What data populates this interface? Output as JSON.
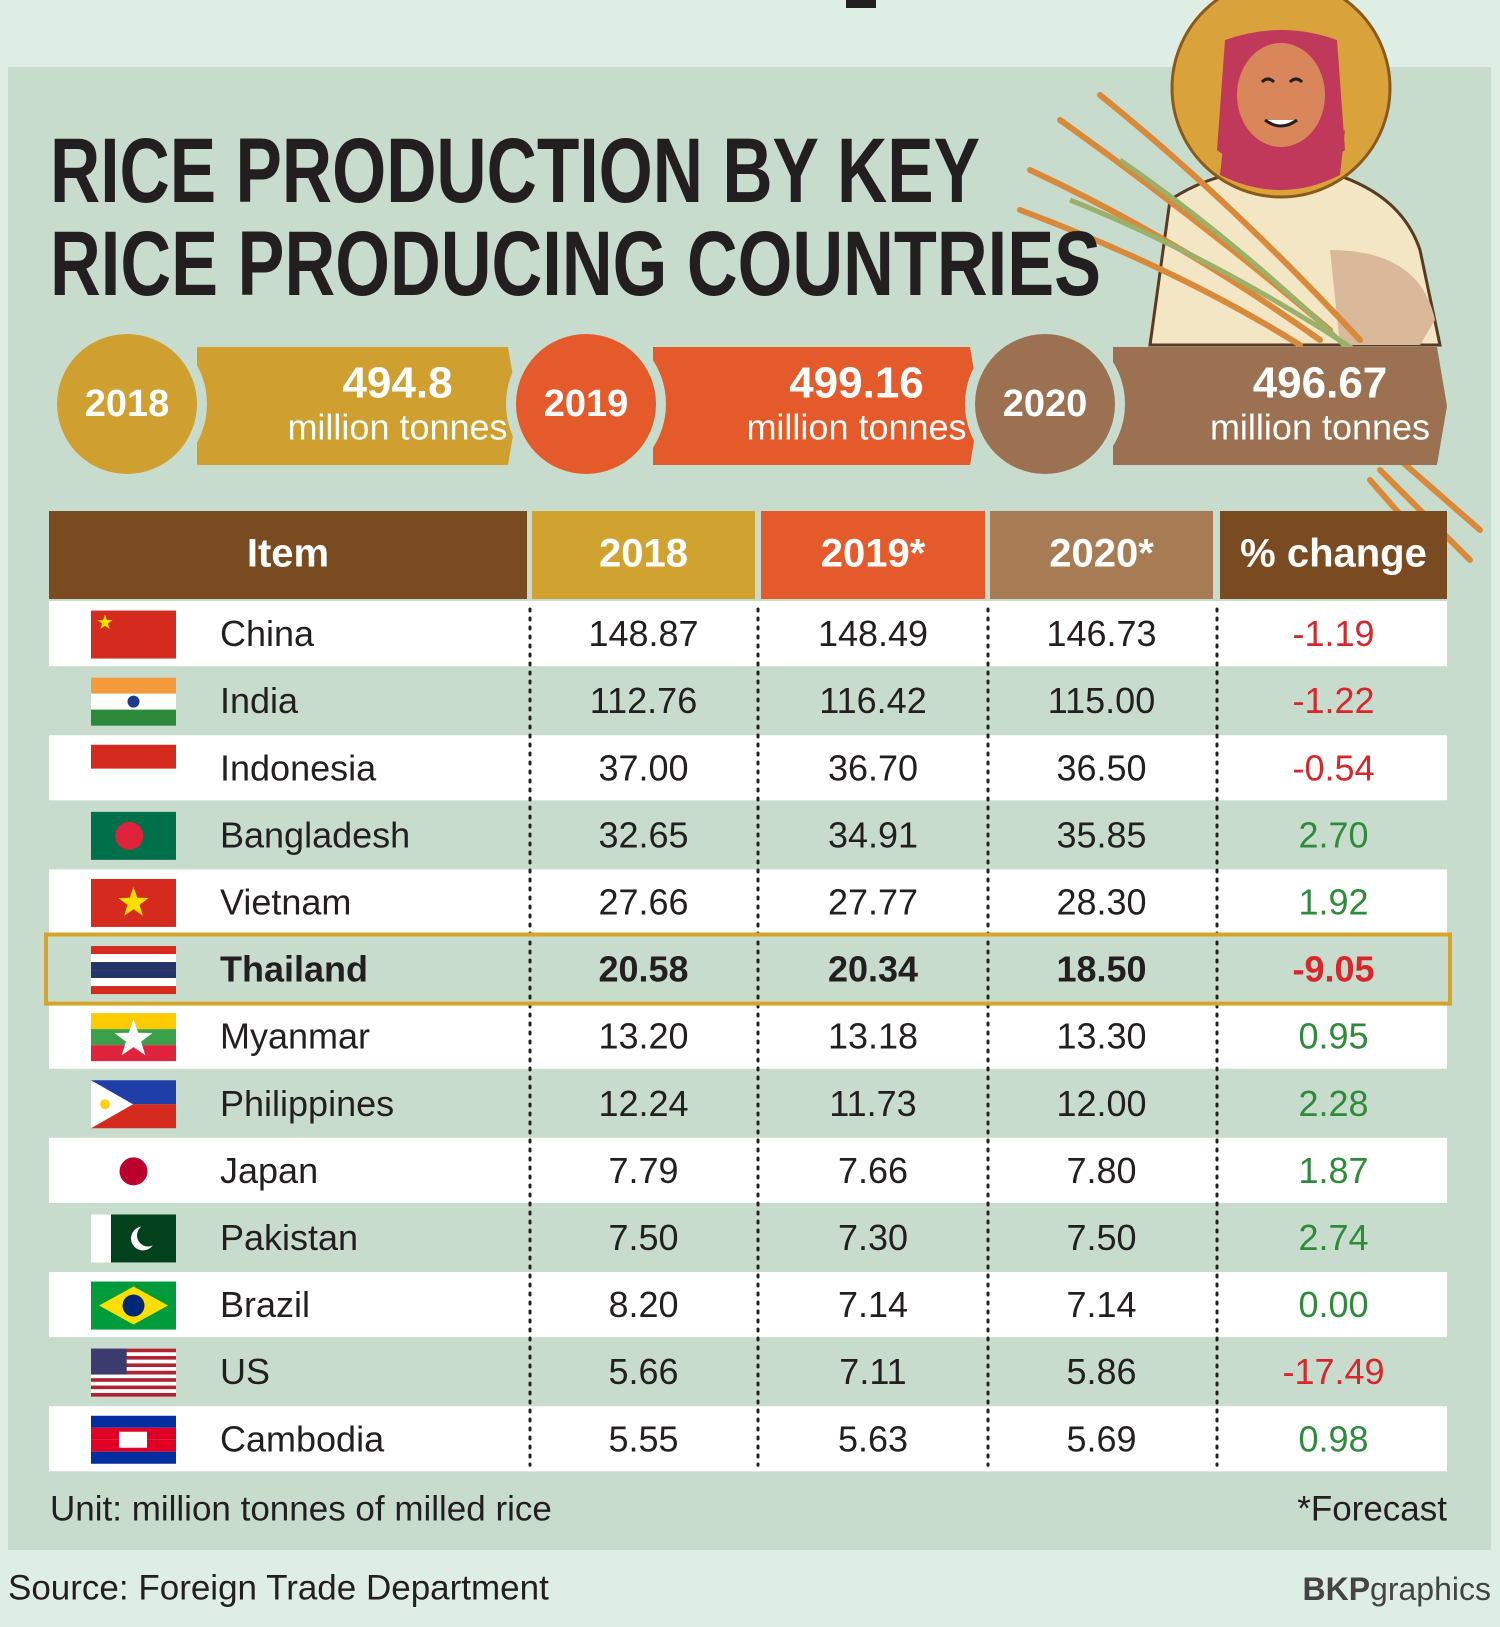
{
  "header": {
    "title_lines": [
      "RICE PRODUCTION BY KEY",
      "RICE PRODUCING COUNTRIES"
    ]
  },
  "totals": [
    {
      "year": "2018",
      "value": "494.8",
      "unit": "million tonnes"
    },
    {
      "year": "2019",
      "value": "499.16",
      "unit": "million tonnes"
    },
    {
      "year": "2020",
      "value": "496.67",
      "unit": "million tonnes"
    }
  ],
  "table": {
    "columns": [
      "Item",
      "2018",
      "2019*",
      "2020*",
      "% change"
    ],
    "rows": [
      [
        "China",
        "148.87",
        "148.49",
        "146.73",
        "-1.19"
      ],
      [
        "India",
        "112.76",
        "116.42",
        "115.00",
        "-1.22"
      ],
      [
        "Indonesia",
        "37.00",
        "36.70",
        "36.50",
        "-0.54"
      ],
      [
        "Bangladesh",
        "32.65",
        "34.91",
        "35.85",
        "2.70"
      ],
      [
        "Vietnam",
        "27.66",
        "27.77",
        "28.30",
        "1.92"
      ],
      [
        "Thailand",
        "20.58",
        "20.34",
        "18.50",
        "-9.05"
      ],
      [
        "Myanmar",
        "13.20",
        "13.18",
        "13.30",
        "0.95"
      ],
      [
        "Philippines",
        "12.24",
        "11.73",
        "12.00",
        "2.28"
      ],
      [
        "Japan",
        "7.79",
        "7.66",
        "7.80",
        "1.87"
      ],
      [
        "Pakistan",
        "7.50",
        "7.30",
        "7.50",
        "2.74"
      ],
      [
        "Brazil",
        "8.20",
        "7.14",
        "7.14",
        "0.00"
      ],
      [
        "US",
        "5.66",
        "7.11",
        "5.86",
        "-17.49"
      ],
      [
        "Cambodia",
        "5.55",
        "5.63",
        "5.69",
        "0.98"
      ]
    ],
    "highlight_row": 5
  },
  "footer": {
    "unit": "Unit: million tonnes of milled rice",
    "note": "*Forecast",
    "source": "Source: Foreign Trade Department",
    "credit_bold": "BKP",
    "credit": "graphics"
  }
}
